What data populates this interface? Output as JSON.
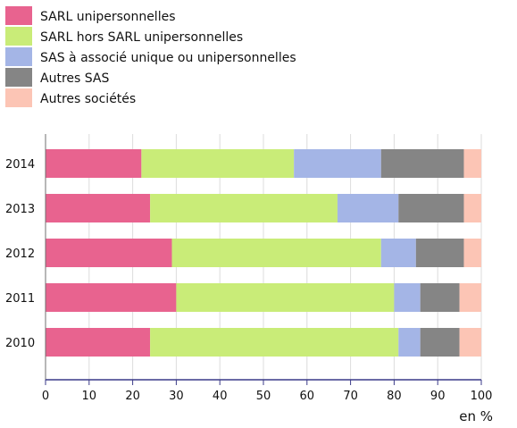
{
  "chart_data": {
    "type": "bar",
    "orientation": "horizontal",
    "stacked": true,
    "categories": [
      "2014",
      "2013",
      "2012",
      "2011",
      "2010"
    ],
    "series": [
      {
        "name": "SARL unipersonnelles",
        "color": "#e8638f",
        "values": [
          22,
          24,
          29,
          30,
          24
        ]
      },
      {
        "name": "SARL hors SARL unipersonnelles",
        "color": "#c9ec78",
        "values": [
          35,
          43,
          48,
          50,
          57
        ]
      },
      {
        "name": "SAS à associé unique ou unipersonnelles",
        "color": "#a4b5e6",
        "values": [
          20,
          14,
          8,
          6,
          5
        ]
      },
      {
        "name": "Autres SAS",
        "color": "#858585",
        "values": [
          19,
          15,
          11,
          9,
          9
        ]
      },
      {
        "name": "Autres sociétés",
        "color": "#fcc5b5",
        "values": [
          4,
          4,
          4,
          5,
          5
        ]
      }
    ],
    "xlim": [
      0,
      100
    ],
    "xticks": [
      "0",
      "10",
      "20",
      "30",
      "40",
      "50",
      "60",
      "70",
      "80",
      "90",
      "100"
    ],
    "xlabel": "en %",
    "grid": true,
    "legend_position": "top-left"
  }
}
